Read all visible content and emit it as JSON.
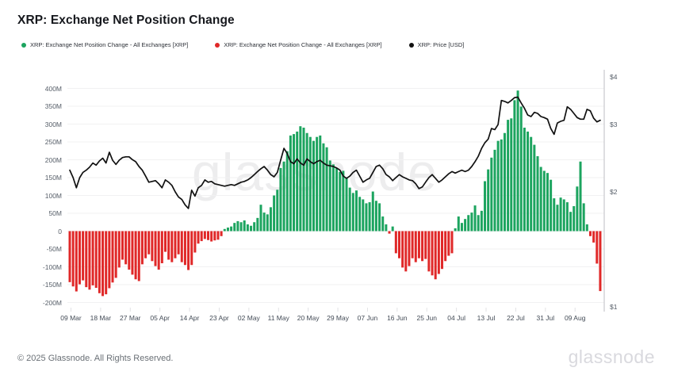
{
  "title": "XRP: Exchange Net Position Change",
  "watermark": "glassnode",
  "legend": [
    {
      "label": "XRP: Exchange Net Position Change - All Exchanges [XRP]",
      "color": "#1CA45F"
    },
    {
      "label": "XRP: Exchange Net Position Change - All Exchanges [XRP]",
      "color": "#E02828"
    },
    {
      "label": "XRP: Price [USD]",
      "color": "#111111"
    }
  ],
  "footer": {
    "copyright": "© 2025 Glassnode. All Rights Reserved.",
    "brand": "glassnode"
  },
  "chart_data": {
    "type": "mixed",
    "title": "XRP: Exchange Net Position Change",
    "grid": true,
    "legend_position": "top-left",
    "left_axis": {
      "name": "Exchange Net Position Change [XRP]",
      "ticks": [
        "400M",
        "350M",
        "300M",
        "250M",
        "200M",
        "150M",
        "100M",
        "50M",
        "0",
        "-50M",
        "-100M",
        "-150M",
        "-200M"
      ],
      "tick_values": [
        400,
        350,
        300,
        250,
        200,
        150,
        100,
        50,
        0,
        -50,
        -100,
        -150,
        -200
      ],
      "range_millions": [
        -200,
        400
      ]
    },
    "right_axis": {
      "name": "Price [USD]",
      "scale": "log",
      "ticks": [
        {
          "label": "$4",
          "value": 4
        },
        {
          "label": "$3",
          "value": 3
        },
        {
          "label": "$2",
          "value": 2
        },
        {
          "label": "$1",
          "value": 1
        }
      ],
      "range": [
        1,
        4
      ]
    },
    "x_axis": {
      "start_date": "09 Mar",
      "end_date": "17 Aug",
      "interval": "1 day",
      "ticks": [
        {
          "label": "09 Mar",
          "d": 0
        },
        {
          "label": "18 Mar",
          "d": 9
        },
        {
          "label": "27 Mar",
          "d": 18
        },
        {
          "label": "05 Apr",
          "d": 27
        },
        {
          "label": "14 Apr",
          "d": 36
        },
        {
          "label": "23 Apr",
          "d": 45
        },
        {
          "label": "02 May",
          "d": 54
        },
        {
          "label": "11 May",
          "d": 63
        },
        {
          "label": "20 May",
          "d": 72
        },
        {
          "label": "29 May",
          "d": 81
        },
        {
          "label": "07 Jun",
          "d": 90
        },
        {
          "label": "16 Jun",
          "d": 99
        },
        {
          "label": "25 Jun",
          "d": 108
        },
        {
          "label": "04 Jul",
          "d": 117
        },
        {
          "label": "13 Jul",
          "d": 126
        },
        {
          "label": "22 Jul",
          "d": 135
        },
        {
          "label": "31 Jul",
          "d": 144
        },
        {
          "label": "09 Aug",
          "d": 153
        }
      ]
    },
    "series": [
      {
        "name": "XRP: Exchange Net Position Change - All Exchanges [XRP]",
        "type": "bar",
        "unit": "XRP, millions",
        "positive_color": "#1CA45F",
        "negative_color": "#E02828",
        "start_date": "09 Mar",
        "values": [
          -143,
          -155,
          -169,
          -149,
          -138,
          -157,
          -164,
          -152,
          -159,
          -174,
          -182,
          -177,
          -160,
          -144,
          -131,
          -102,
          -80,
          -93,
          -108,
          -122,
          -135,
          -140,
          -93,
          -76,
          -65,
          -84,
          -98,
          -108,
          -90,
          -58,
          -80,
          -87,
          -76,
          -65,
          -87,
          -95,
          -109,
          -95,
          -60,
          -35,
          -28,
          -22,
          -25,
          -29,
          -26,
          -24,
          -14,
          6,
          10,
          13,
          23,
          28,
          25,
          30,
          19,
          15,
          25,
          37,
          74,
          52,
          47,
          67,
          100,
          116,
          177,
          195,
          224,
          268,
          272,
          279,
          294,
          290,
          275,
          264,
          253,
          264,
          268,
          246,
          235,
          198,
          187,
          177,
          166,
          169,
          151,
          122,
          107,
          114,
          96,
          89,
          78,
          81,
          111,
          85,
          78,
          41,
          19,
          -7,
          13,
          -62,
          -76,
          -102,
          -113,
          -98,
          -76,
          -87,
          -76,
          -84,
          -78,
          -113,
          -124,
          -135,
          -120,
          -106,
          -84,
          -69,
          -62,
          8,
          41,
          23,
          34,
          45,
          52,
          72,
          45,
          57,
          140,
          173,
          206,
          228,
          253,
          257,
          275,
          312,
          316,
          367,
          394,
          349,
          290,
          279,
          264,
          242,
          210,
          180,
          169,
          163,
          144,
          92,
          74,
          94,
          89,
          81,
          54,
          70,
          125,
          195,
          78,
          19,
          -14,
          -32,
          -91,
          -168
        ]
      },
      {
        "name": "XRP: Price [USD]",
        "type": "line",
        "color": "#111111",
        "scale": "log",
        "points": [
          [
            0,
            2.28
          ],
          [
            1,
            2.18
          ],
          [
            2,
            2.05
          ],
          [
            3,
            2.18
          ],
          [
            4,
            2.25
          ],
          [
            5,
            2.28
          ],
          [
            6,
            2.32
          ],
          [
            7,
            2.38
          ],
          [
            8,
            2.35
          ],
          [
            9,
            2.41
          ],
          [
            10,
            2.45
          ],
          [
            11,
            2.38
          ],
          [
            12,
            2.54
          ],
          [
            13,
            2.42
          ],
          [
            14,
            2.36
          ],
          [
            15,
            2.42
          ],
          [
            16,
            2.46
          ],
          [
            17,
            2.47
          ],
          [
            18,
            2.47
          ],
          [
            19,
            2.43
          ],
          [
            20,
            2.4
          ],
          [
            21,
            2.33
          ],
          [
            22,
            2.28
          ],
          [
            23,
            2.2
          ],
          [
            24,
            2.12
          ],
          [
            25,
            2.13
          ],
          [
            26,
            2.14
          ],
          [
            27,
            2.1
          ],
          [
            28,
            2.05
          ],
          [
            29,
            2.15
          ],
          [
            30,
            2.12
          ],
          [
            31,
            2.08
          ],
          [
            32,
            2.0
          ],
          [
            33,
            1.94
          ],
          [
            34,
            1.91
          ],
          [
            35,
            1.85
          ],
          [
            36,
            1.81
          ],
          [
            37,
            2.02
          ],
          [
            38,
            1.95
          ],
          [
            39,
            2.05
          ],
          [
            40,
            2.08
          ],
          [
            41,
            2.15
          ],
          [
            42,
            2.12
          ],
          [
            43,
            2.13
          ],
          [
            44,
            2.1
          ],
          [
            45,
            2.09
          ],
          [
            46,
            2.08
          ],
          [
            47,
            2.07
          ],
          [
            48,
            2.08
          ],
          [
            49,
            2.09
          ],
          [
            50,
            2.08
          ],
          [
            51,
            2.1
          ],
          [
            52,
            2.12
          ],
          [
            53,
            2.13
          ],
          [
            54,
            2.15
          ],
          [
            55,
            2.18
          ],
          [
            56,
            2.22
          ],
          [
            57,
            2.26
          ],
          [
            58,
            2.3
          ],
          [
            59,
            2.33
          ],
          [
            60,
            2.28
          ],
          [
            61,
            2.22
          ],
          [
            62,
            2.19
          ],
          [
            63,
            2.25
          ],
          [
            64,
            2.42
          ],
          [
            65,
            2.6
          ],
          [
            66,
            2.52
          ],
          [
            67,
            2.4
          ],
          [
            68,
            2.37
          ],
          [
            69,
            2.44
          ],
          [
            70,
            2.38
          ],
          [
            71,
            2.35
          ],
          [
            72,
            2.44
          ],
          [
            73,
            2.4
          ],
          [
            74,
            2.37
          ],
          [
            75,
            2.4
          ],
          [
            76,
            2.42
          ],
          [
            77,
            2.38
          ],
          [
            78,
            2.35
          ],
          [
            79,
            2.34
          ],
          [
            80,
            2.33
          ],
          [
            81,
            2.31
          ],
          [
            82,
            2.28
          ],
          [
            83,
            2.2
          ],
          [
            84,
            2.17
          ],
          [
            85,
            2.2
          ],
          [
            86,
            2.25
          ],
          [
            87,
            2.28
          ],
          [
            88,
            2.2
          ],
          [
            89,
            2.12
          ],
          [
            90,
            2.15
          ],
          [
            91,
            2.17
          ],
          [
            92,
            2.25
          ],
          [
            93,
            2.33
          ],
          [
            94,
            2.35
          ],
          [
            95,
            2.3
          ],
          [
            96,
            2.22
          ],
          [
            97,
            2.19
          ],
          [
            98,
            2.14
          ],
          [
            99,
            2.18
          ],
          [
            100,
            2.22
          ],
          [
            101,
            2.19
          ],
          [
            102,
            2.17
          ],
          [
            103,
            2.15
          ],
          [
            104,
            2.14
          ],
          [
            105,
            2.1
          ],
          [
            106,
            2.04
          ],
          [
            107,
            2.06
          ],
          [
            108,
            2.12
          ],
          [
            109,
            2.18
          ],
          [
            110,
            2.22
          ],
          [
            111,
            2.17
          ],
          [
            112,
            2.12
          ],
          [
            113,
            2.15
          ],
          [
            114,
            2.19
          ],
          [
            115,
            2.23
          ],
          [
            116,
            2.26
          ],
          [
            117,
            2.24
          ],
          [
            118,
            2.26
          ],
          [
            119,
            2.28
          ],
          [
            120,
            2.26
          ],
          [
            121,
            2.28
          ],
          [
            122,
            2.33
          ],
          [
            123,
            2.4
          ],
          [
            124,
            2.48
          ],
          [
            125,
            2.6
          ],
          [
            126,
            2.69
          ],
          [
            127,
            2.75
          ],
          [
            128,
            2.93
          ],
          [
            129,
            2.91
          ],
          [
            130,
            3.0
          ],
          [
            131,
            3.47
          ],
          [
            132,
            3.45
          ],
          [
            133,
            3.42
          ],
          [
            134,
            3.47
          ],
          [
            135,
            3.53
          ],
          [
            136,
            3.54
          ],
          [
            137,
            3.42
          ],
          [
            138,
            3.31
          ],
          [
            139,
            3.18
          ],
          [
            140,
            3.15
          ],
          [
            141,
            3.23
          ],
          [
            142,
            3.21
          ],
          [
            143,
            3.15
          ],
          [
            144,
            3.13
          ],
          [
            145,
            3.1
          ],
          [
            146,
            2.93
          ],
          [
            147,
            2.83
          ],
          [
            148,
            3.03
          ],
          [
            149,
            3.06
          ],
          [
            150,
            3.08
          ],
          [
            151,
            3.34
          ],
          [
            152,
            3.29
          ],
          [
            153,
            3.21
          ],
          [
            154,
            3.13
          ],
          [
            155,
            3.1
          ],
          [
            156,
            3.1
          ],
          [
            157,
            3.29
          ],
          [
            158,
            3.26
          ],
          [
            159,
            3.12
          ],
          [
            160,
            3.05
          ],
          [
            161,
            3.08
          ]
        ]
      }
    ]
  }
}
